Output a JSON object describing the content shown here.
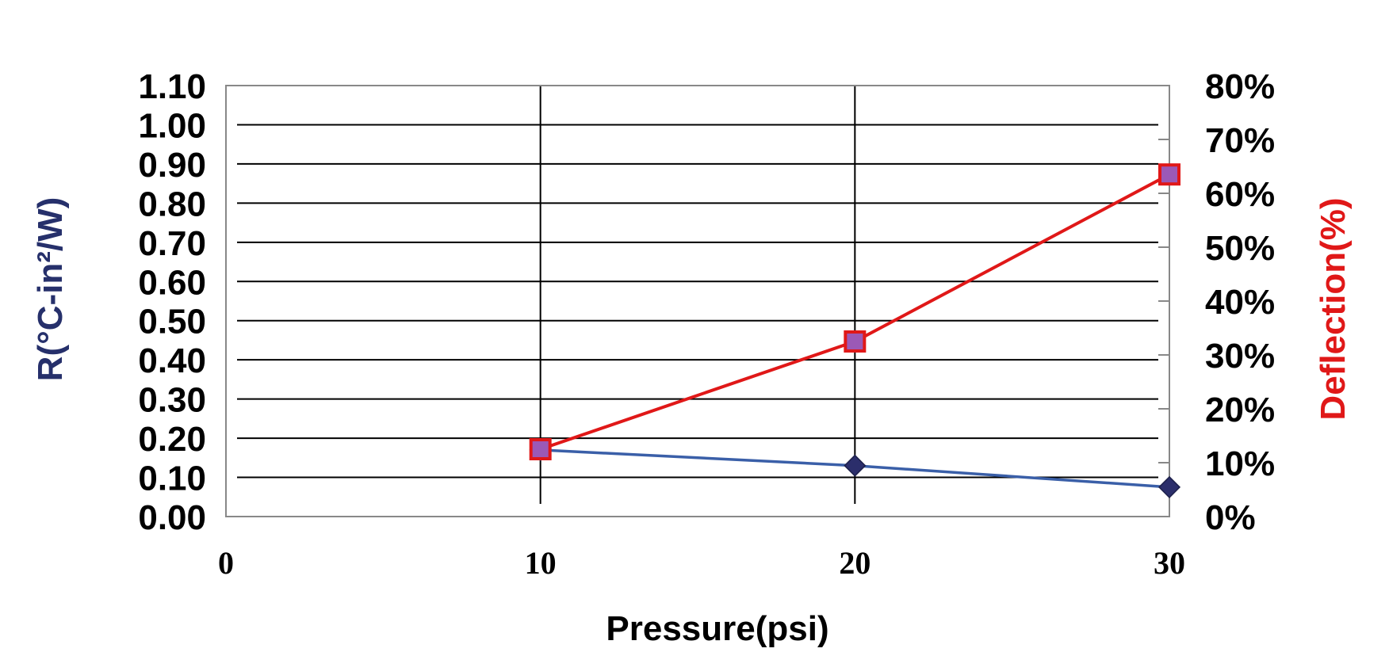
{
  "chart_data": {
    "type": "line",
    "title": "",
    "xlabel": "Pressure(psi)",
    "ylabel_left": "R(°C-in²/W)",
    "ylabel_right": "Deflection(%)",
    "x_ticks": [
      "0",
      "10",
      "20",
      "30"
    ],
    "xlim": [
      0,
      30
    ],
    "ylim_left": [
      0,
      1.1
    ],
    "ylim_right": [
      0,
      80
    ],
    "y_ticks_left": [
      "0.00",
      "0.10",
      "0.20",
      "0.30",
      "0.40",
      "0.50",
      "0.60",
      "0.70",
      "0.80",
      "0.90",
      "1.00",
      "1.10"
    ],
    "y_ticks_right": [
      "0%",
      "10%",
      "20%",
      "30%",
      "40%",
      "50%",
      "60%",
      "70%",
      "80%"
    ],
    "grid": true,
    "series": [
      {
        "axis": "left",
        "color": "#3a5fa8",
        "marker": "diamond",
        "marker_color": "#2b2e6b",
        "x": [
          10,
          20,
          30
        ],
        "y": [
          0.17,
          0.13,
          0.075
        ]
      },
      {
        "axis": "right",
        "unit": "%",
        "color": "#e01818",
        "marker": "square",
        "marker_color": "#9b59b6",
        "x": [
          10,
          20,
          30
        ],
        "y": [
          12.5,
          32.5,
          63.5
        ]
      }
    ],
    "colors": {
      "left_axis_title": "#26306b",
      "right_axis_title": "#e01818",
      "grid": "#000000",
      "frame": "#888888"
    }
  }
}
